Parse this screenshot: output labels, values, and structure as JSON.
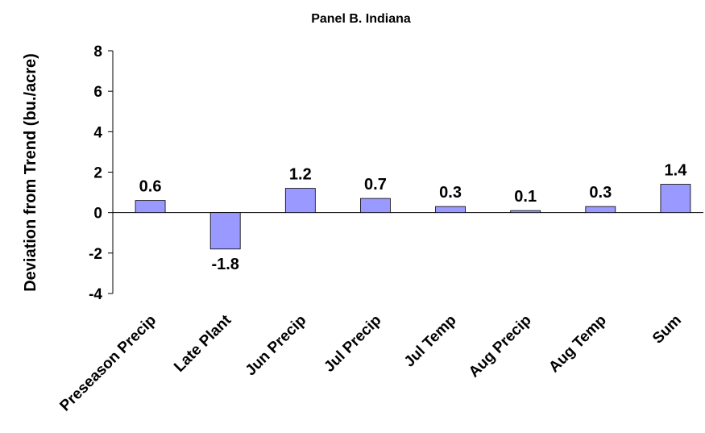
{
  "chart_data": {
    "type": "bar",
    "title": "Panel B. Indiana",
    "xlabel": "",
    "ylabel": "Deviation from Trend (bu./acre)",
    "ylim": [
      -4,
      8
    ],
    "yticks": [
      -4,
      -2,
      0,
      2,
      4,
      6,
      8
    ],
    "categories": [
      "Preseason Precip",
      "Late Plant",
      "Jun Precip",
      "Jul Precip",
      "Jul Temp",
      "Aug Precip",
      "Aug Temp",
      "Sum"
    ],
    "values": [
      0.6,
      -1.8,
      1.2,
      0.7,
      0.3,
      0.1,
      0.3,
      1.4
    ],
    "data_labels": [
      "0.6",
      "-1.8",
      "1.2",
      "0.7",
      "0.3",
      "0.1",
      "0.3",
      "1.4"
    ],
    "grid": false,
    "legend": "none",
    "bar_color": "#9999ff",
    "bar_edge_color": "#000000"
  }
}
